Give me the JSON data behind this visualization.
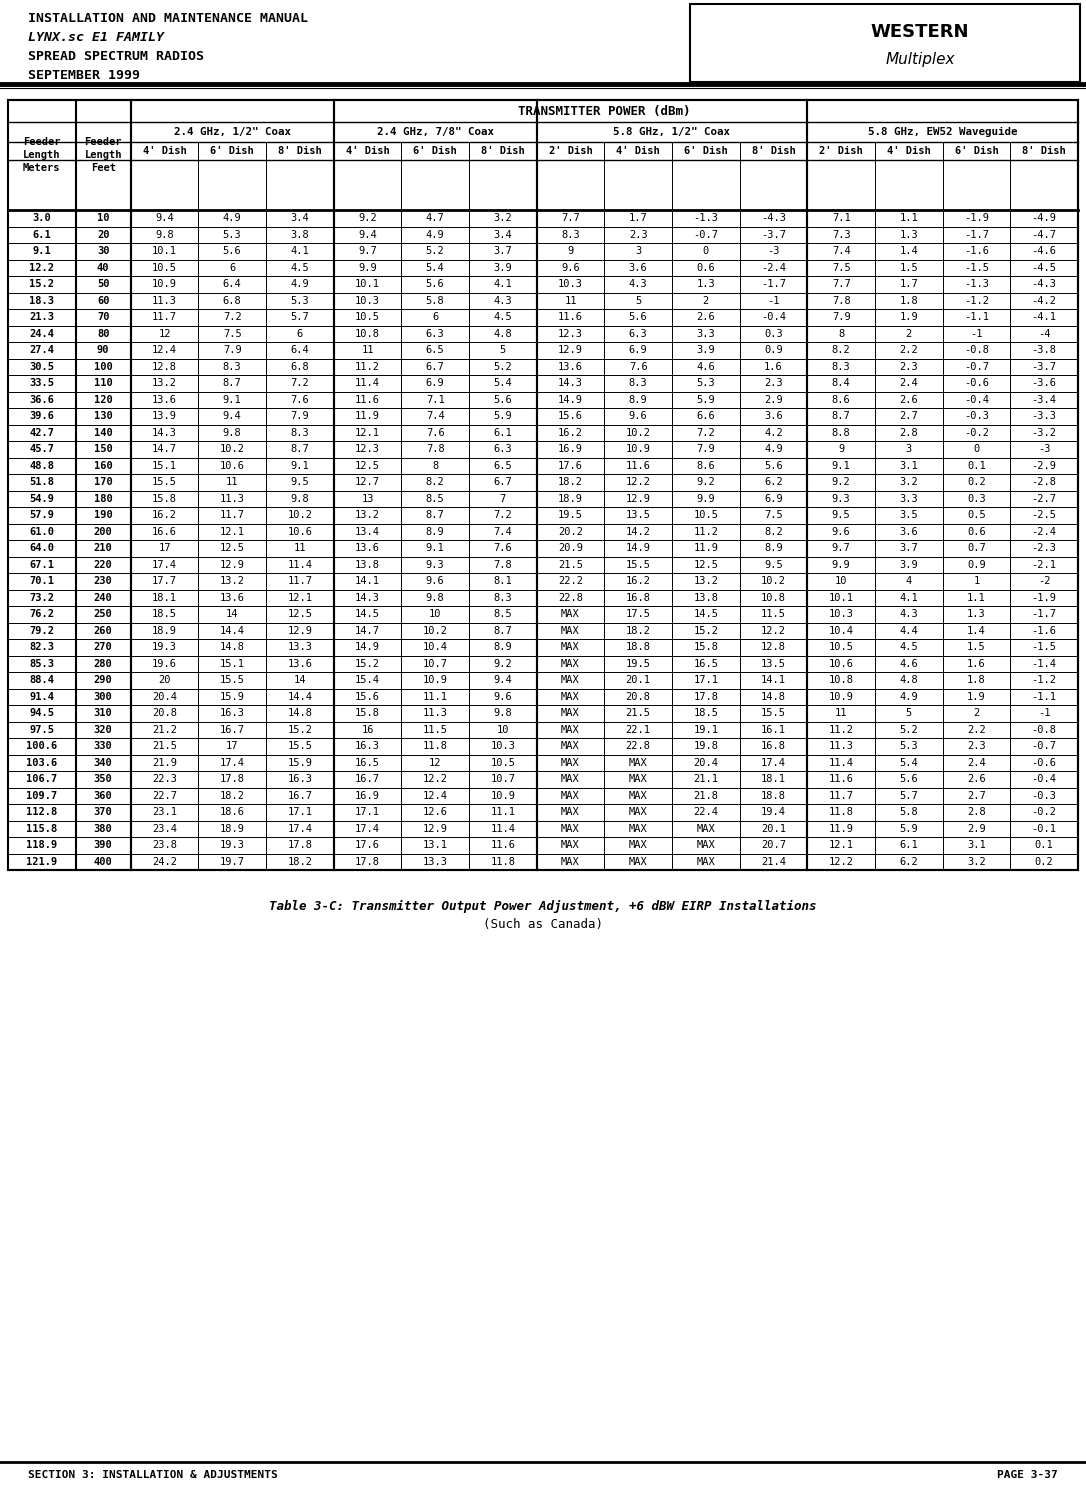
{
  "header_lines": [
    "INSTALLATION AND MAINTENANCE MANUAL",
    "LYNX.sc E1 FAMILY",
    "SPREAD SPECTRUM RADIOS",
    "SEPTEMBER 1999"
  ],
  "footer_left": "SECTION 3: INSTALLATION & ADJUSTMENTS",
  "footer_right": "PAGE 3-37",
  "caption_line1": "Table 3-C: Transmitter Output Power Adjustment, +6 dBW EIRP Installations",
  "caption_line2": "(Such as Canada)",
  "col_groups": [
    {
      "label": "2.4 GHz, 1/2\" Coax",
      "subcols": [
        "4' Dish",
        "6' Dish",
        "8' Dish"
      ],
      "start": 2,
      "end": 5
    },
    {
      "label": "2.4 GHz, 7/8\" Coax",
      "subcols": [
        "4' Dish",
        "6' Dish",
        "8' Dish"
      ],
      "start": 5,
      "end": 8
    },
    {
      "label": "5.8 GHz, 1/2\" Coax",
      "subcols": [
        "2' Dish",
        "4' Dish",
        "6' Dish",
        "8' Dish"
      ],
      "start": 8,
      "end": 12
    },
    {
      "label": "5.8 GHz, EW52 Waveguide",
      "subcols": [
        "2' Dish",
        "4' Dish",
        "6' Dish",
        "8' Dish"
      ],
      "start": 12,
      "end": 16
    }
  ],
  "title_row": "TRANSMITTER POWER (dBm)",
  "rows": [
    [
      3.0,
      10,
      9.4,
      4.9,
      3.4,
      9.2,
      4.7,
      3.2,
      7.7,
      1.7,
      -1.3,
      -4.3,
      7.1,
      1.1,
      -1.9,
      -4.9
    ],
    [
      6.1,
      20,
      9.8,
      5.3,
      3.8,
      9.4,
      4.9,
      3.4,
      8.3,
      2.3,
      -0.7,
      -3.7,
      7.3,
      1.3,
      -1.7,
      -4.7
    ],
    [
      9.1,
      30,
      10.1,
      5.6,
      4.1,
      9.7,
      5.2,
      3.7,
      9.0,
      3.0,
      0.0,
      -3.0,
      7.4,
      1.4,
      -1.6,
      -4.6
    ],
    [
      12.2,
      40,
      10.5,
      6.0,
      4.5,
      9.9,
      5.4,
      3.9,
      9.6,
      3.6,
      0.6,
      -2.4,
      7.5,
      1.5,
      -1.5,
      -4.5
    ],
    [
      15.2,
      50,
      10.9,
      6.4,
      4.9,
      10.1,
      5.6,
      4.1,
      10.3,
      4.3,
      1.3,
      -1.7,
      7.7,
      1.7,
      -1.3,
      -4.3
    ],
    [
      18.3,
      60,
      11.3,
      6.8,
      5.3,
      10.3,
      5.8,
      4.3,
      11.0,
      5.0,
      2.0,
      -1.0,
      7.8,
      1.8,
      -1.2,
      -4.2
    ],
    [
      21.3,
      70,
      11.7,
      7.2,
      5.7,
      10.5,
      6.0,
      4.5,
      11.6,
      5.6,
      2.6,
      -0.4,
      7.9,
      1.9,
      -1.1,
      -4.1
    ],
    [
      24.4,
      80,
      12.0,
      7.5,
      6.0,
      10.8,
      6.3,
      4.8,
      12.3,
      6.3,
      3.3,
      0.3,
      8.0,
      2.0,
      -1.0,
      -4.0
    ],
    [
      27.4,
      90,
      12.4,
      7.9,
      6.4,
      11.0,
      6.5,
      5.0,
      12.9,
      6.9,
      3.9,
      0.9,
      8.2,
      2.2,
      -0.8,
      -3.8
    ],
    [
      30.5,
      100,
      12.8,
      8.3,
      6.8,
      11.2,
      6.7,
      5.2,
      13.6,
      7.6,
      4.6,
      1.6,
      8.3,
      2.3,
      -0.7,
      -3.7
    ],
    [
      33.5,
      110,
      13.2,
      8.7,
      7.2,
      11.4,
      6.9,
      5.4,
      14.3,
      8.3,
      5.3,
      2.3,
      8.4,
      2.4,
      -0.6,
      -3.6
    ],
    [
      36.6,
      120,
      13.6,
      9.1,
      7.6,
      11.6,
      7.1,
      5.6,
      14.9,
      8.9,
      5.9,
      2.9,
      8.6,
      2.6,
      -0.4,
      -3.4
    ],
    [
      39.6,
      130,
      13.9,
      9.4,
      7.9,
      11.9,
      7.4,
      5.9,
      15.6,
      9.6,
      6.6,
      3.6,
      8.7,
      2.7,
      -0.3,
      -3.3
    ],
    [
      42.7,
      140,
      14.3,
      9.8,
      8.3,
      12.1,
      7.6,
      6.1,
      16.2,
      10.2,
      7.2,
      4.2,
      8.8,
      2.8,
      -0.2,
      -3.2
    ],
    [
      45.7,
      150,
      14.7,
      10.2,
      8.7,
      12.3,
      7.8,
      6.3,
      16.9,
      10.9,
      7.9,
      4.9,
      9.0,
      3.0,
      0.0,
      -3.0
    ],
    [
      48.8,
      160,
      15.1,
      10.6,
      9.1,
      12.5,
      8.0,
      6.5,
      17.6,
      11.6,
      8.6,
      5.6,
      9.1,
      3.1,
      0.1,
      -2.9
    ],
    [
      51.8,
      170,
      15.5,
      11.0,
      9.5,
      12.7,
      8.2,
      6.7,
      18.2,
      12.2,
      9.2,
      6.2,
      9.2,
      3.2,
      0.2,
      -2.8
    ],
    [
      54.9,
      180,
      15.8,
      11.3,
      9.8,
      13.0,
      8.5,
      7.0,
      18.9,
      12.9,
      9.9,
      6.9,
      9.3,
      3.3,
      0.3,
      -2.7
    ],
    [
      57.9,
      190,
      16.2,
      11.7,
      10.2,
      13.2,
      8.7,
      7.2,
      19.5,
      13.5,
      10.5,
      7.5,
      9.5,
      3.5,
      0.5,
      -2.5
    ],
    [
      61.0,
      200,
      16.6,
      12.1,
      10.6,
      13.4,
      8.9,
      7.4,
      20.2,
      14.2,
      11.2,
      8.2,
      9.6,
      3.6,
      0.6,
      -2.4
    ],
    [
      64.0,
      210,
      17.0,
      12.5,
      11.0,
      13.6,
      9.1,
      7.6,
      20.9,
      14.9,
      11.9,
      8.9,
      9.7,
      3.7,
      0.7,
      -2.3
    ],
    [
      67.1,
      220,
      17.4,
      12.9,
      11.4,
      13.8,
      9.3,
      7.8,
      21.5,
      15.5,
      12.5,
      9.5,
      9.9,
      3.9,
      0.9,
      -2.1
    ],
    [
      70.1,
      230,
      17.7,
      13.2,
      11.7,
      14.1,
      9.6,
      8.1,
      22.2,
      16.2,
      13.2,
      10.2,
      10.0,
      4.0,
      1.0,
      -2.0
    ],
    [
      73.2,
      240,
      18.1,
      13.6,
      12.1,
      14.3,
      9.8,
      8.3,
      22.8,
      16.8,
      13.8,
      10.8,
      10.1,
      4.1,
      1.1,
      -1.9
    ],
    [
      76.2,
      250,
      18.5,
      14.0,
      12.5,
      14.5,
      10.0,
      8.5,
      "MAX",
      17.5,
      14.5,
      11.5,
      10.3,
      4.3,
      1.3,
      -1.7
    ],
    [
      79.2,
      260,
      18.9,
      14.4,
      12.9,
      14.7,
      10.2,
      8.7,
      "MAX",
      18.2,
      15.2,
      12.2,
      10.4,
      4.4,
      1.4,
      -1.6
    ],
    [
      82.3,
      270,
      19.3,
      14.8,
      13.3,
      14.9,
      10.4,
      8.9,
      "MAX",
      18.8,
      15.8,
      12.8,
      10.5,
      4.5,
      1.5,
      -1.5
    ],
    [
      85.3,
      280,
      19.6,
      15.1,
      13.6,
      15.2,
      10.7,
      9.2,
      "MAX",
      19.5,
      16.5,
      13.5,
      10.6,
      4.6,
      1.6,
      -1.4
    ],
    [
      88.4,
      290,
      20.0,
      15.5,
      14.0,
      15.4,
      10.9,
      9.4,
      "MAX",
      20.1,
      17.1,
      14.1,
      10.8,
      4.8,
      1.8,
      -1.2
    ],
    [
      91.4,
      300,
      20.4,
      15.9,
      14.4,
      15.6,
      11.1,
      9.6,
      "MAX",
      20.8,
      17.8,
      14.8,
      10.9,
      4.9,
      1.9,
      -1.1
    ],
    [
      94.5,
      310,
      20.8,
      16.3,
      14.8,
      15.8,
      11.3,
      9.8,
      "MAX",
      21.5,
      18.5,
      15.5,
      11.0,
      5.0,
      2.0,
      -1.0
    ],
    [
      97.5,
      320,
      21.2,
      16.7,
      15.2,
      16.0,
      11.5,
      10.0,
      "MAX",
      22.1,
      19.1,
      16.1,
      11.2,
      5.2,
      2.2,
      -0.8
    ],
    [
      100.6,
      330,
      21.5,
      17.0,
      15.5,
      16.3,
      11.8,
      10.3,
      "MAX",
      22.8,
      19.8,
      16.8,
      11.3,
      5.3,
      2.3,
      -0.7
    ],
    [
      103.6,
      340,
      21.9,
      17.4,
      15.9,
      16.5,
      12.0,
      10.5,
      "MAX",
      "MAX",
      20.4,
      17.4,
      11.4,
      5.4,
      2.4,
      -0.6
    ],
    [
      106.7,
      350,
      22.3,
      17.8,
      16.3,
      16.7,
      12.2,
      10.7,
      "MAX",
      "MAX",
      21.1,
      18.1,
      11.6,
      5.6,
      2.6,
      -0.4
    ],
    [
      109.7,
      360,
      22.7,
      18.2,
      16.7,
      16.9,
      12.4,
      10.9,
      "MAX",
      "MAX",
      21.8,
      18.8,
      11.7,
      5.7,
      2.7,
      -0.3
    ],
    [
      112.8,
      370,
      23.1,
      18.6,
      17.1,
      17.1,
      12.6,
      11.1,
      "MAX",
      "MAX",
      22.4,
      19.4,
      11.8,
      5.8,
      2.8,
      -0.2
    ],
    [
      115.8,
      380,
      23.4,
      18.9,
      17.4,
      17.4,
      12.9,
      11.4,
      "MAX",
      "MAX",
      "MAX",
      20.1,
      11.9,
      5.9,
      2.9,
      -0.1
    ],
    [
      118.9,
      390,
      23.8,
      19.3,
      17.8,
      17.6,
      13.1,
      11.6,
      "MAX",
      "MAX",
      "MAX",
      20.7,
      12.1,
      6.1,
      3.1,
      0.1
    ],
    [
      121.9,
      400,
      24.2,
      19.7,
      18.2,
      17.8,
      13.3,
      11.8,
      "MAX",
      "MAX",
      "MAX",
      21.4,
      12.2,
      6.2,
      3.2,
      0.2
    ]
  ]
}
